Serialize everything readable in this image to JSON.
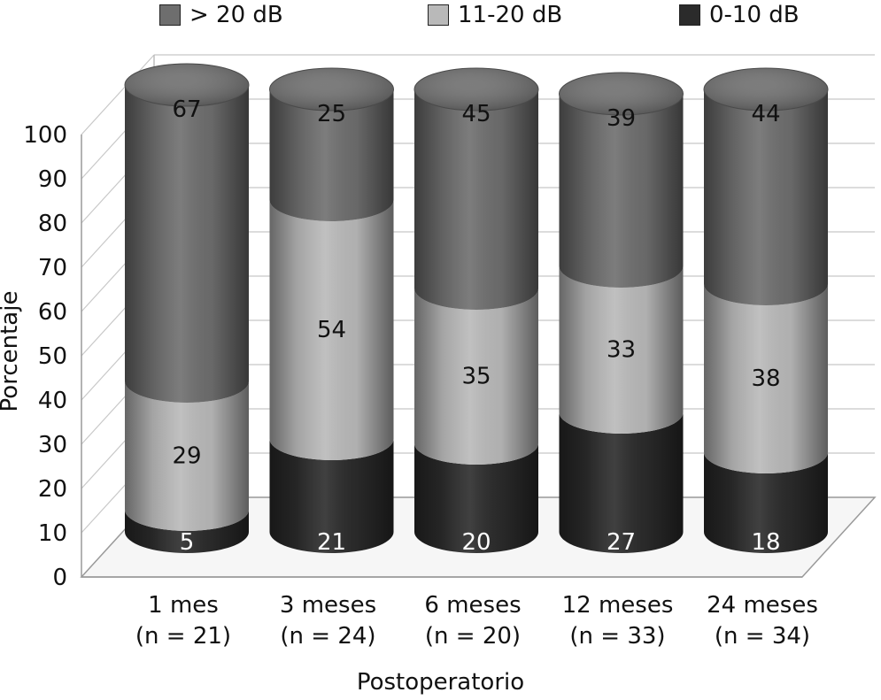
{
  "chart_data": {
    "type": "bar",
    "stacked": true,
    "three_d": true,
    "xlabel": "Postoperatorio",
    "ylabel": "Porcentaje",
    "ylim": [
      0,
      100
    ],
    "yticks": [
      "0",
      "10",
      "20",
      "30",
      "40",
      "50",
      "60",
      "70",
      "80",
      "90",
      "100"
    ],
    "grid": true,
    "legend_position": "top",
    "categories": [
      [
        "1 mes",
        "(n = 21)"
      ],
      [
        "3 meses",
        "(n = 24)"
      ],
      [
        "6 meses",
        "(n = 20)"
      ],
      [
        "12 meses",
        "(n = 33)"
      ],
      [
        "24 meses",
        "(n = 34)"
      ]
    ],
    "series": [
      {
        "name": "0-10 dB",
        "values": [
          5,
          21,
          20,
          27,
          18
        ],
        "labels": [
          "5",
          "21",
          "20",
          "27",
          "18"
        ],
        "color": "#2b2b2b",
        "label_color": "#ffffff"
      },
      {
        "name": "11-20 dB",
        "values": [
          29,
          54,
          35,
          33,
          38
        ],
        "labels": [
          "29",
          "54",
          "35",
          "33",
          "38"
        ],
        "color": "#b9b9b9",
        "label_color": "#111111"
      },
      {
        "name": "> 20 dB",
        "values": [
          67,
          25,
          45,
          39,
          44
        ],
        "labels": [
          "67",
          "25",
          "45",
          "39",
          "44"
        ],
        "color": "#6e6e6e",
        "label_color": "#111111"
      }
    ],
    "legend_order": [
      "> 20 dB",
      "11-20 dB",
      "0-10 dB"
    ]
  }
}
